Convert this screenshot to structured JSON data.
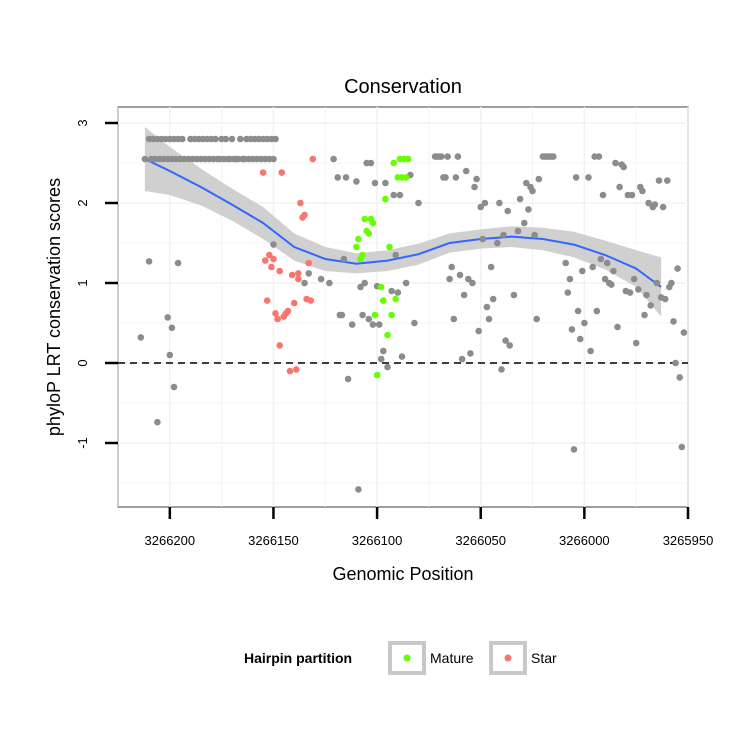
{
  "chart_data": {
    "type": "scatter",
    "title": "Conservation",
    "xlabel": "Genomic Position",
    "ylabel": "phyloP LRT conservation scores",
    "x_reversed": true,
    "xlim": [
      3266225,
      3265950
    ],
    "ylim": [
      -1.8,
      3.2
    ],
    "x_ticks": [
      3266200,
      3266150,
      3266100,
      3266050,
      3266000,
      3265950
    ],
    "x_tick_labels": [
      "3266200",
      "3266150",
      "3266100",
      "3266050",
      "3266000",
      "3265950"
    ],
    "y_ticks": [
      -1,
      0,
      1,
      2,
      3
    ],
    "y_tick_labels": [
      "-1",
      "0",
      "1",
      "2",
      "3"
    ],
    "grid": true,
    "reference_line": {
      "y": 0,
      "style": "dashed",
      "color": "#000000"
    },
    "legend": {
      "title": "Hairpin partition",
      "position": "bottom",
      "entries": [
        {
          "label": "Mature",
          "color": "#66ff00"
        },
        {
          "label": "Star",
          "color": "#f8766d"
        }
      ]
    },
    "colors": {
      "Other": "#8c8c8c",
      "Mature": "#66ff00",
      "Star": "#f8766d",
      "smooth_line": "#3366ff",
      "confidence_band": "#c8c8c8"
    },
    "smooth": {
      "x": [
        3266212,
        3266200,
        3266185,
        3266170,
        3266155,
        3266140,
        3266125,
        3266110,
        3266095,
        3266080,
        3266065,
        3266050,
        3266035,
        3266020,
        3266005,
        3265990,
        3265975,
        3265963
      ],
      "y": [
        2.55,
        2.4,
        2.2,
        1.98,
        1.75,
        1.45,
        1.3,
        1.24,
        1.28,
        1.36,
        1.5,
        1.55,
        1.58,
        1.55,
        1.48,
        1.35,
        1.18,
        0.95
      ],
      "lower": [
        2.15,
        2.1,
        1.97,
        1.78,
        1.55,
        1.28,
        1.15,
        1.12,
        1.15,
        1.23,
        1.38,
        1.43,
        1.45,
        1.41,
        1.32,
        1.17,
        0.95,
        0.58
      ],
      "upper": [
        2.95,
        2.7,
        2.43,
        2.18,
        1.95,
        1.62,
        1.45,
        1.37,
        1.41,
        1.49,
        1.62,
        1.67,
        1.71,
        1.69,
        1.64,
        1.53,
        1.41,
        1.32
      ]
    },
    "series": [
      {
        "name": "Other",
        "points": [
          [
            3266212,
            2.55
          ],
          [
            3266210,
            2.8
          ],
          [
            3266209,
            2.55
          ],
          [
            3266208,
            2.8
          ],
          [
            3266207,
            2.55
          ],
          [
            3266206,
            2.8
          ],
          [
            3266205,
            2.55
          ],
          [
            3266204,
            2.8
          ],
          [
            3266203,
            2.55
          ],
          [
            3266202,
            2.8
          ],
          [
            3266201,
            2.55
          ],
          [
            3266200,
            2.8
          ],
          [
            3266199,
            2.55
          ],
          [
            3266198,
            2.8
          ],
          [
            3266197,
            2.55
          ],
          [
            3266196,
            2.8
          ],
          [
            3266195,
            2.55
          ],
          [
            3266194,
            2.8
          ],
          [
            3266193,
            2.55
          ],
          [
            3266191,
            2.55
          ],
          [
            3266190,
            2.8
          ],
          [
            3266189,
            2.55
          ],
          [
            3266188,
            2.8
          ],
          [
            3266187,
            2.55
          ],
          [
            3266186,
            2.8
          ],
          [
            3266185,
            2.55
          ],
          [
            3266184,
            2.8
          ],
          [
            3266183,
            2.55
          ],
          [
            3266182,
            2.8
          ],
          [
            3266181,
            2.55
          ],
          [
            3266180,
            2.8
          ],
          [
            3266179,
            2.55
          ],
          [
            3266178,
            2.8
          ],
          [
            3266177,
            2.55
          ],
          [
            3266176,
            2.55
          ],
          [
            3266175,
            2.8
          ],
          [
            3266174,
            2.55
          ],
          [
            3266173,
            2.8
          ],
          [
            3266172,
            2.55
          ],
          [
            3266171,
            2.55
          ],
          [
            3266170,
            2.8
          ],
          [
            3266169,
            2.55
          ],
          [
            3266168,
            2.55
          ],
          [
            3266167,
            2.55
          ],
          [
            3266166,
            2.8
          ],
          [
            3266165,
            2.55
          ],
          [
            3266164,
            2.55
          ],
          [
            3266163,
            2.8
          ],
          [
            3266162,
            2.55
          ],
          [
            3266161,
            2.8
          ],
          [
            3266160,
            2.55
          ],
          [
            3266159,
            2.8
          ],
          [
            3266158,
            2.55
          ],
          [
            3266157,
            2.8
          ],
          [
            3266156,
            2.55
          ],
          [
            3266155,
            2.8
          ],
          [
            3266154,
            2.55
          ],
          [
            3266153,
            2.8
          ],
          [
            3266152,
            2.55
          ],
          [
            3266151,
            2.8
          ],
          [
            3266150,
            2.55
          ],
          [
            3266149,
            2.8
          ],
          [
            3266214,
            0.32
          ],
          [
            3266210,
            1.27
          ],
          [
            3266201,
            0.57
          ],
          [
            3266200,
            0.1
          ],
          [
            3266199,
            0.44
          ],
          [
            3266198,
            -0.3
          ],
          [
            3266196,
            1.25
          ],
          [
            3266206,
            -0.74
          ],
          [
            3266150,
            1.48
          ],
          [
            3266135,
            1.0
          ],
          [
            3266133,
            1.12
          ],
          [
            3266127,
            1.05
          ],
          [
            3266123,
            1.0
          ],
          [
            3266121,
            2.55
          ],
          [
            3266119,
            2.32
          ],
          [
            3266118,
            0.6
          ],
          [
            3266117,
            0.6
          ],
          [
            3266116,
            1.3
          ],
          [
            3266115,
            2.32
          ],
          [
            3266114,
            -0.2
          ],
          [
            3266112,
            0.48
          ],
          [
            3266110,
            2.27
          ],
          [
            3266109,
            -1.58
          ],
          [
            3266108,
            0.95
          ],
          [
            3266107,
            0.6
          ],
          [
            3266106,
            1.0
          ],
          [
            3266105,
            2.5
          ],
          [
            3266104,
            0.55
          ],
          [
            3266103,
            2.5
          ],
          [
            3266102,
            0.48
          ],
          [
            3266101,
            2.25
          ],
          [
            3266100,
            0.96
          ],
          [
            3266099,
            0.48
          ],
          [
            3266098,
            0.05
          ],
          [
            3266097,
            0.15
          ],
          [
            3266096,
            2.25
          ],
          [
            3266095,
            -0.05
          ],
          [
            3266093,
            0.9
          ],
          [
            3266092,
            2.1
          ],
          [
            3266091,
            1.35
          ],
          [
            3266090,
            0.88
          ],
          [
            3266089,
            2.1
          ],
          [
            3266088,
            0.08
          ],
          [
            3266086,
            1.0
          ],
          [
            3266084,
            2.35
          ],
          [
            3266082,
            0.5
          ],
          [
            3266080,
            2.0
          ],
          [
            3266072,
            2.58
          ],
          [
            3266071,
            2.58
          ],
          [
            3266070,
            2.58
          ],
          [
            3266069,
            2.58
          ],
          [
            3266068,
            2.32
          ],
          [
            3266067,
            2.32
          ],
          [
            3266066,
            2.58
          ],
          [
            3266065,
            1.05
          ],
          [
            3266064,
            1.2
          ],
          [
            3266063,
            0.55
          ],
          [
            3266062,
            2.32
          ],
          [
            3266061,
            2.58
          ],
          [
            3266060,
            1.1
          ],
          [
            3266059,
            0.05
          ],
          [
            3266058,
            0.85
          ],
          [
            3266057,
            2.4
          ],
          [
            3266056,
            1.05
          ],
          [
            3266055,
            0.12
          ],
          [
            3266054,
            1.0
          ],
          [
            3266053,
            2.2
          ],
          [
            3266052,
            2.3
          ],
          [
            3266051,
            0.4
          ],
          [
            3266050,
            1.95
          ],
          [
            3266049,
            1.55
          ],
          [
            3266048,
            2.0
          ],
          [
            3266047,
            0.7
          ],
          [
            3266046,
            0.55
          ],
          [
            3266045,
            1.2
          ],
          [
            3266044,
            0.8
          ],
          [
            3266042,
            1.5
          ],
          [
            3266041,
            2.0
          ],
          [
            3266040,
            -0.08
          ],
          [
            3266039,
            1.6
          ],
          [
            3266038,
            0.28
          ],
          [
            3266037,
            1.9
          ],
          [
            3266036,
            0.22
          ],
          [
            3266034,
            0.85
          ],
          [
            3266032,
            1.65
          ],
          [
            3266031,
            2.05
          ],
          [
            3266029,
            1.75
          ],
          [
            3266028,
            2.25
          ],
          [
            3266027,
            1.92
          ],
          [
            3266026,
            2.2
          ],
          [
            3266025,
            2.15
          ],
          [
            3266024,
            1.6
          ],
          [
            3266023,
            0.55
          ],
          [
            3266022,
            2.3
          ],
          [
            3266020,
            2.58
          ],
          [
            3266019,
            2.58
          ],
          [
            3266018,
            2.58
          ],
          [
            3266017,
            2.58
          ],
          [
            3266016,
            2.58
          ],
          [
            3266015,
            2.58
          ],
          [
            3266009,
            1.25
          ],
          [
            3266008,
            0.88
          ],
          [
            3266007,
            1.05
          ],
          [
            3266006,
            0.42
          ],
          [
            3266005,
            -1.08
          ],
          [
            3266004,
            2.32
          ],
          [
            3266003,
            0.65
          ],
          [
            3266002,
            0.3
          ],
          [
            3266001,
            1.15
          ],
          [
            3266000,
            0.5
          ],
          [
            3265998,
            2.32
          ],
          [
            3265997,
            0.15
          ],
          [
            3265996,
            1.2
          ],
          [
            3265995,
            2.58
          ],
          [
            3265994,
            0.65
          ],
          [
            3265993,
            2.58
          ],
          [
            3265992,
            1.3
          ],
          [
            3265991,
            2.1
          ],
          [
            3265990,
            1.05
          ],
          [
            3265989,
            1.25
          ],
          [
            3265988,
            1.0
          ],
          [
            3265987,
            0.98
          ],
          [
            3265986,
            1.15
          ],
          [
            3265985,
            2.5
          ],
          [
            3265984,
            0.45
          ],
          [
            3265983,
            2.2
          ],
          [
            3265982,
            2.48
          ],
          [
            3265981,
            2.45
          ],
          [
            3265980,
            0.9
          ],
          [
            3265979,
            2.1
          ],
          [
            3265978,
            0.88
          ],
          [
            3265977,
            2.1
          ],
          [
            3265976,
            1.05
          ],
          [
            3265975,
            0.25
          ],
          [
            3265974,
            0.92
          ],
          [
            3265973,
            2.2
          ],
          [
            3265972,
            2.15
          ],
          [
            3265971,
            0.6
          ],
          [
            3265970,
            0.85
          ],
          [
            3265969,
            2.0
          ],
          [
            3265968,
            0.72
          ],
          [
            3265967,
            1.95
          ],
          [
            3265966,
            1.98
          ],
          [
            3265965,
            1.0
          ],
          [
            3265964,
            2.28
          ],
          [
            3265963,
            0.82
          ],
          [
            3265962,
            1.95
          ],
          [
            3265961,
            0.8
          ],
          [
            3265960,
            2.28
          ],
          [
            3265959,
            0.95
          ],
          [
            3265958,
            1.0
          ],
          [
            3265957,
            0.52
          ],
          [
            3265956,
            0.0
          ],
          [
            3265955,
            1.18
          ],
          [
            3265954,
            -0.18
          ],
          [
            3265953,
            -1.05
          ],
          [
            3265952,
            0.38
          ]
        ]
      },
      {
        "name": "Mature",
        "points": [
          [
            3266110,
            1.45
          ],
          [
            3266109,
            1.55
          ],
          [
            3266108,
            1.3
          ],
          [
            3266107,
            1.35
          ],
          [
            3266106,
            1.8
          ],
          [
            3266105,
            1.65
          ],
          [
            3266104,
            1.62
          ],
          [
            3266103,
            1.8
          ],
          [
            3266102,
            1.75
          ],
          [
            3266101,
            0.6
          ],
          [
            3266100,
            -0.15
          ],
          [
            3266098,
            0.95
          ],
          [
            3266097,
            0.78
          ],
          [
            3266096,
            2.05
          ],
          [
            3266095,
            0.35
          ],
          [
            3266094,
            1.45
          ],
          [
            3266093,
            0.6
          ],
          [
            3266092,
            2.5
          ],
          [
            3266091,
            0.8
          ],
          [
            3266090,
            2.32
          ],
          [
            3266089,
            2.55
          ],
          [
            3266088,
            2.32
          ],
          [
            3266087,
            2.55
          ],
          [
            3266086,
            2.32
          ],
          [
            3266085,
            2.55
          ]
        ]
      },
      {
        "name": "Star",
        "points": [
          [
            3266154,
            1.28
          ],
          [
            3266153,
            0.78
          ],
          [
            3266152,
            1.35
          ],
          [
            3266151,
            1.2
          ],
          [
            3266150,
            1.3
          ],
          [
            3266149,
            0.62
          ],
          [
            3266148,
            0.55
          ],
          [
            3266147,
            0.22
          ],
          [
            3266146,
            2.38
          ],
          [
            3266145,
            0.58
          ],
          [
            3266144,
            0.62
          ],
          [
            3266143,
            0.65
          ],
          [
            3266142,
            -0.1
          ],
          [
            3266141,
            1.1
          ],
          [
            3266140,
            0.75
          ],
          [
            3266139,
            -0.08
          ],
          [
            3266138,
            1.05
          ],
          [
            3266137,
            2.0
          ],
          [
            3266136,
            1.82
          ],
          [
            3266135,
            1.85
          ],
          [
            3266134,
            0.8
          ],
          [
            3266133,
            1.25
          ],
          [
            3266132,
            0.78
          ],
          [
            3266131,
            2.55
          ],
          [
            3266155,
            2.38
          ],
          [
            3266147,
            1.15
          ],
          [
            3266138,
            1.12
          ]
        ]
      }
    ]
  }
}
